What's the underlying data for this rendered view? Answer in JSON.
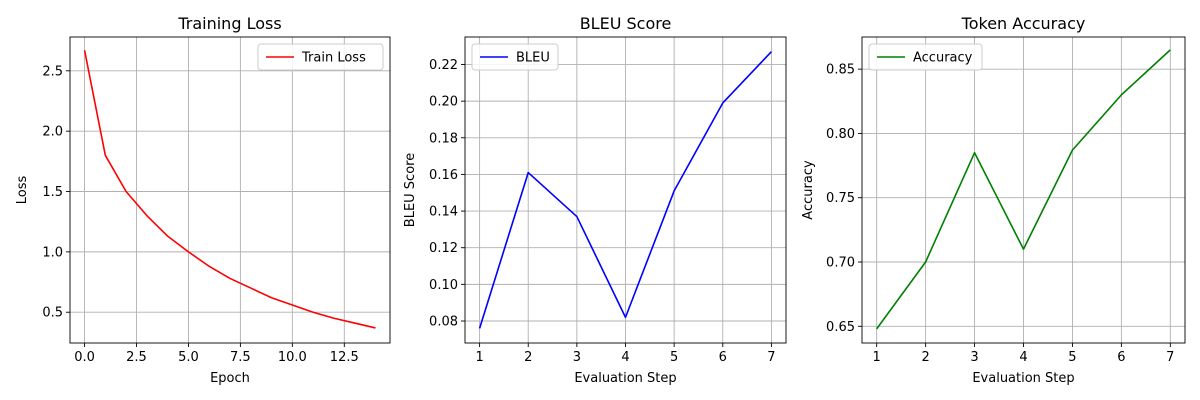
{
  "chart_data": [
    {
      "type": "line",
      "title": "Training Loss",
      "xlabel": "Epoch",
      "ylabel": "Loss",
      "xlim": [
        -0.7,
        14.7
      ],
      "ylim": [
        0.245,
        2.78
      ],
      "xticks": [
        0.0,
        2.5,
        5.0,
        7.5,
        10.0,
        12.5
      ],
      "xtick_labels": [
        "0.0",
        "2.5",
        "5.0",
        "7.5",
        "10.0",
        "12.5"
      ],
      "yticks": [
        0.5,
        1.0,
        1.5,
        2.0,
        2.5
      ],
      "ytick_labels": [
        "0.5",
        "1.0",
        "1.5",
        "2.0",
        "2.5"
      ],
      "grid": true,
      "legend": "top-right",
      "series": [
        {
          "name": "Train Loss",
          "color": "#ff0000",
          "x": [
            0,
            1,
            2,
            3,
            4,
            5,
            6,
            7,
            8,
            9,
            10,
            11,
            12,
            13,
            14
          ],
          "y": [
            2.67,
            1.8,
            1.5,
            1.3,
            1.13,
            1.0,
            0.88,
            0.78,
            0.7,
            0.62,
            0.56,
            0.5,
            0.45,
            0.41,
            0.37
          ]
        }
      ]
    },
    {
      "type": "line",
      "title": "BLEU Score",
      "xlabel": "Evaluation Step",
      "ylabel": "BLEU Score",
      "xlim": [
        0.7,
        7.3
      ],
      "ylim": [
        0.068,
        0.235
      ],
      "xticks": [
        1,
        2,
        3,
        4,
        5,
        6,
        7
      ],
      "xtick_labels": [
        "1",
        "2",
        "3",
        "4",
        "5",
        "6",
        "7"
      ],
      "yticks": [
        0.08,
        0.1,
        0.12,
        0.14,
        0.16,
        0.18,
        0.2,
        0.22
      ],
      "ytick_labels": [
        "0.08",
        "0.10",
        "0.12",
        "0.14",
        "0.16",
        "0.18",
        "0.20",
        "0.22"
      ],
      "grid": true,
      "legend": "top-left",
      "series": [
        {
          "name": "BLEU",
          "color": "#0000ff",
          "x": [
            1,
            2,
            3,
            4,
            5,
            6,
            7
          ],
          "y": [
            0.076,
            0.161,
            0.137,
            0.082,
            0.151,
            0.199,
            0.227
          ]
        }
      ]
    },
    {
      "type": "line",
      "title": "Token Accuracy",
      "xlabel": "Evaluation Step",
      "ylabel": "Accuracy",
      "xlim": [
        0.7,
        7.3
      ],
      "ylim": [
        0.637,
        0.875
      ],
      "xticks": [
        1,
        2,
        3,
        4,
        5,
        6,
        7
      ],
      "xtick_labels": [
        "1",
        "2",
        "3",
        "4",
        "5",
        "6",
        "7"
      ],
      "yticks": [
        0.65,
        0.7,
        0.75,
        0.8,
        0.85
      ],
      "ytick_labels": [
        "0.65",
        "0.70",
        "0.75",
        "0.80",
        "0.85"
      ],
      "grid": true,
      "legend": "top-left",
      "series": [
        {
          "name": "Accuracy",
          "color": "#008000",
          "x": [
            1,
            2,
            3,
            4,
            5,
            6,
            7
          ],
          "y": [
            0.648,
            0.7,
            0.785,
            0.71,
            0.787,
            0.83,
            0.865
          ]
        }
      ]
    }
  ]
}
